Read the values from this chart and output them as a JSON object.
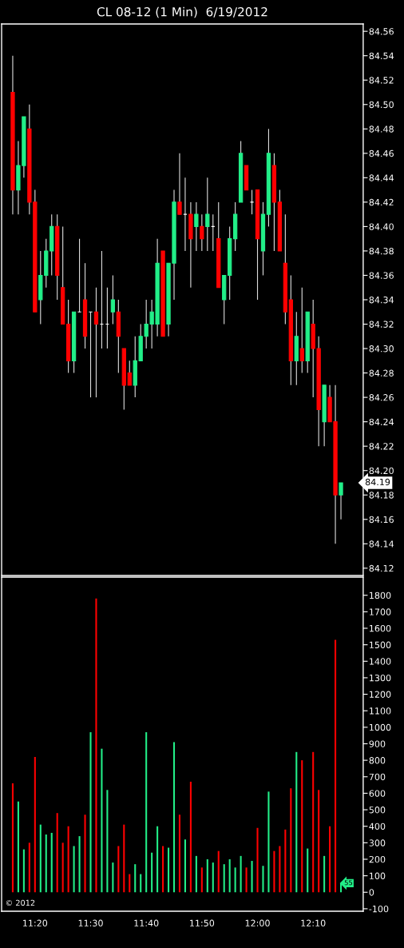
{
  "chart_data": [
    {
      "type": "candlestick",
      "title": "CL 08-12 (1 Min)  6/19/2012",
      "x": [
        "2012-06-19T11:16",
        "2012-06-19T11:17",
        "2012-06-19T11:18",
        "2012-06-19T11:19",
        "2012-06-19T11:20",
        "2012-06-19T11:21",
        "2012-06-19T11:22",
        "2012-06-19T11:23",
        "2012-06-19T11:24",
        "2012-06-19T11:25",
        "2012-06-19T11:26",
        "2012-06-19T11:27",
        "2012-06-19T11:28",
        "2012-06-19T11:29",
        "2012-06-19T11:30",
        "2012-06-19T11:31",
        "2012-06-19T11:32",
        "2012-06-19T11:33",
        "2012-06-19T11:34",
        "2012-06-19T11:35",
        "2012-06-19T11:36",
        "2012-06-19T11:37",
        "2012-06-19T11:38",
        "2012-06-19T11:39",
        "2012-06-19T11:40",
        "2012-06-19T11:41",
        "2012-06-19T11:42",
        "2012-06-19T11:43",
        "2012-06-19T11:44",
        "2012-06-19T11:45",
        "2012-06-19T11:46",
        "2012-06-19T11:47",
        "2012-06-19T11:48",
        "2012-06-19T11:49",
        "2012-06-19T11:50",
        "2012-06-19T11:51",
        "2012-06-19T11:52",
        "2012-06-19T11:53",
        "2012-06-19T11:54",
        "2012-06-19T11:55",
        "2012-06-19T11:56",
        "2012-06-19T11:57",
        "2012-06-19T11:58",
        "2012-06-19T11:59",
        "2012-06-19T12:00",
        "2012-06-19T12:01",
        "2012-06-19T12:02",
        "2012-06-19T12:03",
        "2012-06-19T12:04",
        "2012-06-19T12:05",
        "2012-06-19T12:06",
        "2012-06-19T12:07",
        "2012-06-19T12:08",
        "2012-06-19T12:09",
        "2012-06-19T12:10",
        "2012-06-19T12:11",
        "2012-06-19T12:12",
        "2012-06-19T12:13",
        "2012-06-19T12:14",
        "2012-06-19T12:15"
      ],
      "ohlc": [
        [
          84.51,
          84.54,
          84.41,
          84.43
        ],
        [
          84.43,
          84.47,
          84.41,
          84.45
        ],
        [
          84.45,
          84.49,
          84.44,
          84.49
        ],
        [
          84.48,
          84.5,
          84.41,
          84.42
        ],
        [
          84.42,
          84.43,
          84.33,
          84.33
        ],
        [
          84.34,
          84.38,
          84.32,
          84.36
        ],
        [
          84.36,
          84.39,
          84.35,
          84.38
        ],
        [
          84.38,
          84.41,
          84.36,
          84.4
        ],
        [
          84.4,
          84.41,
          84.34,
          84.36
        ],
        [
          84.35,
          84.4,
          84.32,
          84.32
        ],
        [
          84.32,
          84.34,
          84.28,
          84.29
        ],
        [
          84.29,
          84.33,
          84.28,
          84.33
        ],
        [
          84.33,
          84.39,
          84.33,
          84.33
        ],
        [
          84.34,
          84.37,
          84.3,
          84.31
        ],
        [
          84.33,
          84.33,
          84.26,
          84.33
        ],
        [
          84.33,
          84.35,
          84.26,
          84.32
        ],
        [
          84.32,
          84.38,
          84.3,
          84.32
        ],
        [
          84.32,
          84.35,
          84.3,
          84.32
        ],
        [
          84.33,
          84.36,
          84.32,
          84.34
        ],
        [
          84.33,
          84.34,
          84.28,
          84.31
        ],
        [
          84.3,
          84.3,
          84.25,
          84.27
        ],
        [
          84.28,
          84.29,
          84.27,
          84.27
        ],
        [
          84.27,
          84.31,
          84.26,
          84.29
        ],
        [
          84.29,
          84.32,
          84.29,
          84.31
        ],
        [
          84.31,
          84.34,
          84.3,
          84.32
        ],
        [
          84.32,
          84.34,
          84.3,
          84.33
        ],
        [
          84.32,
          84.39,
          84.31,
          84.37
        ],
        [
          84.38,
          84.38,
          84.31,
          84.31
        ],
        [
          84.32,
          84.37,
          84.31,
          84.37
        ],
        [
          84.37,
          84.43,
          84.34,
          84.42
        ],
        [
          84.42,
          84.46,
          84.41,
          84.41
        ],
        [
          84.41,
          84.44,
          84.38,
          84.41
        ],
        [
          84.41,
          84.42,
          84.35,
          84.39
        ],
        [
          84.4,
          84.42,
          84.38,
          84.41
        ],
        [
          84.4,
          84.41,
          84.38,
          84.39
        ],
        [
          84.4,
          84.44,
          84.38,
          84.41
        ],
        [
          84.4,
          84.41,
          84.38,
          84.4
        ],
        [
          84.39,
          84.42,
          84.35,
          84.35
        ],
        [
          84.34,
          84.36,
          84.32,
          84.36
        ],
        [
          84.36,
          84.4,
          84.34,
          84.39
        ],
        [
          84.39,
          84.42,
          84.38,
          84.41
        ],
        [
          84.42,
          84.47,
          84.42,
          84.46
        ],
        [
          84.45,
          84.45,
          84.43,
          84.43
        ],
        [
          84.42,
          84.43,
          84.41,
          84.42
        ],
        [
          84.43,
          84.43,
          84.34,
          84.39
        ],
        [
          84.38,
          84.42,
          84.36,
          84.41
        ],
        [
          84.41,
          84.48,
          84.4,
          84.46
        ],
        [
          84.45,
          84.46,
          84.38,
          84.42
        ],
        [
          84.42,
          84.43,
          84.38,
          84.38
        ],
        [
          84.37,
          84.41,
          84.32,
          84.33
        ],
        [
          84.34,
          84.36,
          84.27,
          84.29
        ],
        [
          84.29,
          84.33,
          84.27,
          84.31
        ],
        [
          84.3,
          84.35,
          84.28,
          84.29
        ],
        [
          84.29,
          84.33,
          84.28,
          84.33
        ],
        [
          84.32,
          84.34,
          84.26,
          84.3
        ],
        [
          84.3,
          84.31,
          84.22,
          84.25
        ],
        [
          84.24,
          84.27,
          84.22,
          84.27
        ],
        [
          84.26,
          84.27,
          84.24,
          84.24
        ],
        [
          84.24,
          84.27,
          84.14,
          84.18
        ],
        [
          84.18,
          84.19,
          84.16,
          84.19
        ]
      ],
      "colors": [
        "#ff0000",
        "#22ee88",
        "#22ee88",
        "#ff0000",
        "#ff0000",
        "#22ee88",
        "#22ee88",
        "#22ee88",
        "#ff0000",
        "#ff0000",
        "#ff0000",
        "#22ee88",
        "#ffffff",
        "#ff0000",
        "#ffffff",
        "#ff0000",
        "#ffffff",
        "#ffffff",
        "#22ee88",
        "#ff0000",
        "#ff0000",
        "#ff0000",
        "#22ee88",
        "#22ee88",
        "#22ee88",
        "#22ee88",
        "#22ee88",
        "#ff0000",
        "#22ee88",
        "#22ee88",
        "#ff0000",
        "#ffffff",
        "#ff0000",
        "#22ee88",
        "#ff0000",
        "#22ee88",
        "#ffffff",
        "#ff0000",
        "#22ee88",
        "#22ee88",
        "#22ee88",
        "#22ee88",
        "#ff0000",
        "#ffffff",
        "#ff0000",
        "#22ee88",
        "#22ee88",
        "#ff0000",
        "#ff0000",
        "#ff0000",
        "#ff0000",
        "#22ee88",
        "#ff0000",
        "#22ee88",
        "#ff0000",
        "#ff0000",
        "#22ee88",
        "#ff0000",
        "#ff0000",
        "#22ee88"
      ],
      "xlim": [
        "2012-06-19T11:14",
        "2012-06-19T12:19"
      ],
      "ylim": [
        84.114,
        84.566
      ],
      "yticks": [
        {
          "value": 84.12,
          "label": "84.12"
        },
        {
          "value": 84.14,
          "label": "84.14"
        },
        {
          "value": 84.16,
          "label": "84.16"
        },
        {
          "value": 84.18,
          "label": "84.18"
        },
        {
          "value": 84.2,
          "label": "84.20"
        },
        {
          "value": 84.22,
          "label": "84.22"
        },
        {
          "value": 84.24,
          "label": "84.24"
        },
        {
          "value": 84.26,
          "label": "84.26"
        },
        {
          "value": 84.28,
          "label": "84.28"
        },
        {
          "value": 84.3,
          "label": "84.30"
        },
        {
          "value": 84.32,
          "label": "84.32"
        },
        {
          "value": 84.34,
          "label": "84.34"
        },
        {
          "value": 84.36,
          "label": "84.36"
        },
        {
          "value": 84.38,
          "label": "84.38"
        },
        {
          "value": 84.4,
          "label": "84.40"
        },
        {
          "value": 84.42,
          "label": "84.42"
        },
        {
          "value": 84.44,
          "label": "84.44"
        },
        {
          "value": 84.46,
          "label": "84.46"
        },
        {
          "value": 84.48,
          "label": "84.48"
        },
        {
          "value": 84.5,
          "label": "84.50"
        },
        {
          "value": 84.52,
          "label": "84.52"
        },
        {
          "value": 84.54,
          "label": "84.54"
        },
        {
          "value": 84.56,
          "label": "84.56"
        }
      ],
      "annotations": [
        {
          "text": "84.19",
          "x": "2012-06-19T12:15",
          "y": 84.19
        }
      ],
      "tick_labels": "y",
      "grid": false
    },
    {
      "type": "bar",
      "x": [
        "2012-06-19T11:16",
        "2012-06-19T11:17",
        "2012-06-19T11:18",
        "2012-06-19T11:19",
        "2012-06-19T11:20",
        "2012-06-19T11:21",
        "2012-06-19T11:22",
        "2012-06-19T11:23",
        "2012-06-19T11:24",
        "2012-06-19T11:25",
        "2012-06-19T11:26",
        "2012-06-19T11:27",
        "2012-06-19T11:28",
        "2012-06-19T11:29",
        "2012-06-19T11:30",
        "2012-06-19T11:31",
        "2012-06-19T11:32",
        "2012-06-19T11:33",
        "2012-06-19T11:34",
        "2012-06-19T11:35",
        "2012-06-19T11:36",
        "2012-06-19T11:37",
        "2012-06-19T11:38",
        "2012-06-19T11:39",
        "2012-06-19T11:40",
        "2012-06-19T11:41",
        "2012-06-19T11:42",
        "2012-06-19T11:43",
        "2012-06-19T11:44",
        "2012-06-19T11:45",
        "2012-06-19T11:46",
        "2012-06-19T11:47",
        "2012-06-19T11:48",
        "2012-06-19T11:49",
        "2012-06-19T11:50",
        "2012-06-19T11:51",
        "2012-06-19T11:52",
        "2012-06-19T11:53",
        "2012-06-19T11:54",
        "2012-06-19T11:55",
        "2012-06-19T11:56",
        "2012-06-19T11:57",
        "2012-06-19T11:58",
        "2012-06-19T11:59",
        "2012-06-19T12:00",
        "2012-06-19T12:01",
        "2012-06-19T12:02",
        "2012-06-19T12:03",
        "2012-06-19T12:04",
        "2012-06-19T12:05",
        "2012-06-19T12:06",
        "2012-06-19T12:07",
        "2012-06-19T12:08",
        "2012-06-19T12:09",
        "2012-06-19T12:10",
        "2012-06-19T12:11",
        "2012-06-19T12:12",
        "2012-06-19T12:13",
        "2012-06-19T12:14",
        "2012-06-19T12:15"
      ],
      "values": [
        660,
        550,
        260,
        300,
        820,
        410,
        350,
        360,
        480,
        300,
        400,
        280,
        340,
        470,
        970,
        1780,
        870,
        620,
        180,
        280,
        410,
        110,
        170,
        110,
        970,
        240,
        400,
        280,
        270,
        910,
        470,
        320,
        670,
        220,
        150,
        200,
        180,
        250,
        170,
        200,
        150,
        220,
        150,
        190,
        390,
        160,
        610,
        250,
        280,
        380,
        630,
        850,
        800,
        265,
        850,
        620,
        220,
        400,
        1530,
        55
      ],
      "colors": [
        "#ff0000",
        "#22ee88",
        "#22ee88",
        "#ff0000",
        "#ff0000",
        "#22ee88",
        "#22ee88",
        "#22ee88",
        "#ff0000",
        "#ff0000",
        "#ff0000",
        "#22ee88",
        "#22ee88",
        "#ff0000",
        "#22ee88",
        "#ff0000",
        "#22ee88",
        "#22ee88",
        "#22ee88",
        "#ff0000",
        "#ff0000",
        "#ff0000",
        "#22ee88",
        "#22ee88",
        "#22ee88",
        "#22ee88",
        "#22ee88",
        "#ff0000",
        "#22ee88",
        "#22ee88",
        "#ff0000",
        "#22ee88",
        "#ff0000",
        "#22ee88",
        "#ff0000",
        "#22ee88",
        "#22ee88",
        "#ff0000",
        "#22ee88",
        "#22ee88",
        "#22ee88",
        "#22ee88",
        "#ff0000",
        "#22ee88",
        "#ff0000",
        "#22ee88",
        "#22ee88",
        "#ff0000",
        "#ff0000",
        "#ff0000",
        "#ff0000",
        "#22ee88",
        "#ff0000",
        "#22ee88",
        "#ff0000",
        "#ff0000",
        "#22ee88",
        "#ff0000",
        "#ff0000",
        "#22ee88"
      ],
      "xlim": [
        "2012-06-19T11:14",
        "2012-06-19T12:19"
      ],
      "xticks": [
        {
          "value": "2012-06-19T11:20",
          "label": "11:20"
        },
        {
          "value": "2012-06-19T11:30",
          "label": "11:30"
        },
        {
          "value": "2012-06-19T11:40",
          "label": "11:40"
        },
        {
          "value": "2012-06-19T11:50",
          "label": "11:50"
        },
        {
          "value": "2012-06-19T12:00",
          "label": "12:00"
        },
        {
          "value": "2012-06-19T12:10",
          "label": "12:10"
        }
      ],
      "ylim": [
        -115,
        1910
      ],
      "yticks": [
        -100,
        0,
        100,
        200,
        300,
        400,
        500,
        600,
        700,
        800,
        900,
        1000,
        1100,
        1200,
        1300,
        1400,
        1500,
        1600,
        1700,
        1800
      ],
      "annotations": [
        {
          "text": "55",
          "x": "2012-06-19T12:15",
          "y": 55
        },
        "© 2012"
      ],
      "grid": false
    }
  ]
}
